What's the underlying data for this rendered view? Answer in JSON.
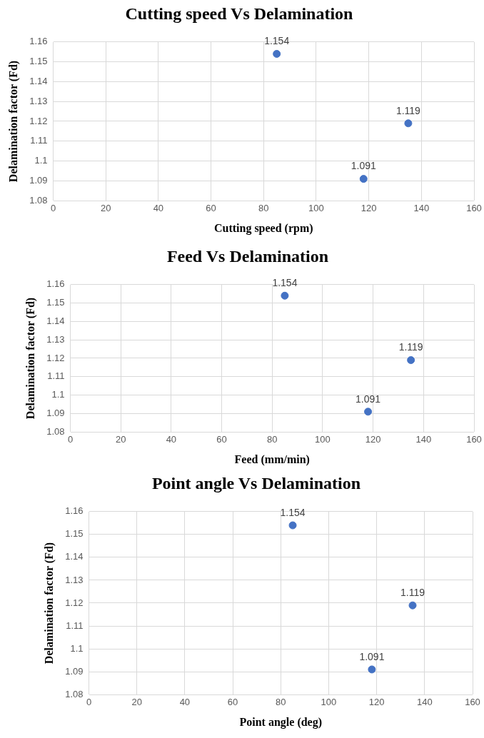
{
  "chart_data": [
    {
      "type": "scatter",
      "title": "Cutting speed Vs Delamination",
      "xlabel": "Cutting speed (rpm)",
      "ylabel": "Delamination factor (Fd)",
      "x": [
        85,
        118,
        135
      ],
      "series": [
        {
          "color": "#4472c4",
          "values": [
            1.154,
            1.091,
            1.119
          ]
        }
      ],
      "xlim": [
        0,
        160
      ],
      "xticks": [
        0,
        20,
        40,
        60,
        80,
        100,
        120,
        140,
        160
      ],
      "ylim": [
        1.08,
        1.16
      ],
      "yticks": [
        1.08,
        1.09,
        1.1,
        1.11,
        1.12,
        1.13,
        1.14,
        1.15,
        1.16
      ],
      "grid": true,
      "marker": "circle",
      "data_labels": true
    },
    {
      "type": "scatter",
      "title": "Feed Vs Delamination",
      "xlabel": "Feed (mm/min)",
      "ylabel": "Delamination factor (Fd)",
      "x": [
        85,
        118,
        135
      ],
      "series": [
        {
          "color": "#4472c4",
          "values": [
            1.154,
            1.091,
            1.119
          ]
        }
      ],
      "xlim": [
        0,
        160
      ],
      "xticks": [
        0,
        20,
        40,
        60,
        80,
        100,
        120,
        140,
        160
      ],
      "ylim": [
        1.08,
        1.16
      ],
      "yticks": [
        1.08,
        1.09,
        1.1,
        1.11,
        1.12,
        1.13,
        1.14,
        1.15,
        1.16
      ],
      "grid": true,
      "marker": "circle",
      "data_labels": true
    },
    {
      "type": "scatter",
      "title": "Point angle Vs Delamination",
      "xlabel": "Point angle (deg)",
      "ylabel": "Delamination factor (Fd)",
      "x": [
        85,
        118,
        135
      ],
      "series": [
        {
          "color": "#4472c4",
          "values": [
            1.154,
            1.091,
            1.119
          ]
        }
      ],
      "xlim": [
        0,
        160
      ],
      "xticks": [
        0,
        20,
        40,
        60,
        80,
        100,
        120,
        140,
        160
      ],
      "ylim": [
        1.08,
        1.16
      ],
      "yticks": [
        1.08,
        1.09,
        1.1,
        1.11,
        1.12,
        1.13,
        1.14,
        1.15,
        1.16
      ],
      "grid": true,
      "marker": "circle",
      "data_labels": true
    }
  ]
}
